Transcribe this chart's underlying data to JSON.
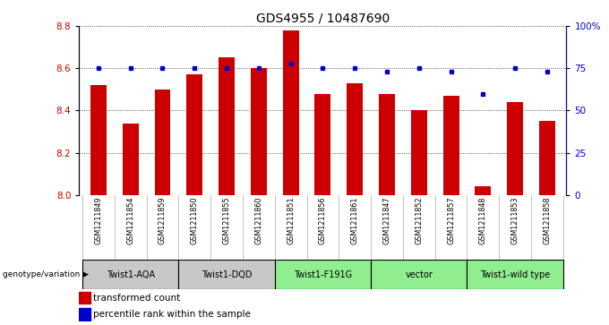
{
  "title": "GDS4955 / 10487690",
  "samples": [
    "GSM1211849",
    "GSM1211854",
    "GSM1211859",
    "GSM1211850",
    "GSM1211855",
    "GSM1211860",
    "GSM1211851",
    "GSM1211856",
    "GSM1211861",
    "GSM1211847",
    "GSM1211852",
    "GSM1211857",
    "GSM1211848",
    "GSM1211853",
    "GSM1211858"
  ],
  "red_values": [
    8.52,
    8.34,
    8.5,
    8.57,
    8.65,
    8.6,
    8.78,
    8.48,
    8.53,
    8.48,
    8.4,
    8.47,
    8.04,
    8.44,
    8.35
  ],
  "blue_values": [
    75,
    75,
    75,
    75,
    75,
    75,
    78,
    75,
    75,
    73,
    75,
    73,
    60,
    75,
    73
  ],
  "ylim_left": [
    8.0,
    8.8
  ],
  "ylim_right": [
    0,
    100
  ],
  "yticks_left": [
    8.0,
    8.2,
    8.4,
    8.6,
    8.8
  ],
  "yticks_right": [
    0,
    25,
    50,
    75,
    100
  ],
  "ytick_labels_right": [
    "0",
    "25",
    "50",
    "75",
    "100%"
  ],
  "groups": [
    {
      "label": "Twist1-AQA",
      "start": 0,
      "end": 3,
      "color": "#c8c8c8"
    },
    {
      "label": "Twist1-DQD",
      "start": 3,
      "end": 6,
      "color": "#c8c8c8"
    },
    {
      "label": "Twist1-F191G",
      "start": 6,
      "end": 9,
      "color": "#90ee90"
    },
    {
      "label": "vector",
      "start": 9,
      "end": 12,
      "color": "#90ee90"
    },
    {
      "label": "Twist1-wild type",
      "start": 12,
      "end": 15,
      "color": "#90ee90"
    }
  ],
  "bar_color": "#cc0000",
  "dot_color": "#0000cc",
  "bg_color": "#ffffff",
  "grid_color": "#000000",
  "label_transformed": "transformed count",
  "label_percentile": "percentile rank within the sample",
  "genotype_label": "genotype/variation",
  "bar_color_legend": "#cc0000",
  "dot_color_legend": "#0000cc",
  "bar_bottom": 8.0,
  "xlabel_color": "#cc0000",
  "ylabel_right_color": "#0000cc"
}
